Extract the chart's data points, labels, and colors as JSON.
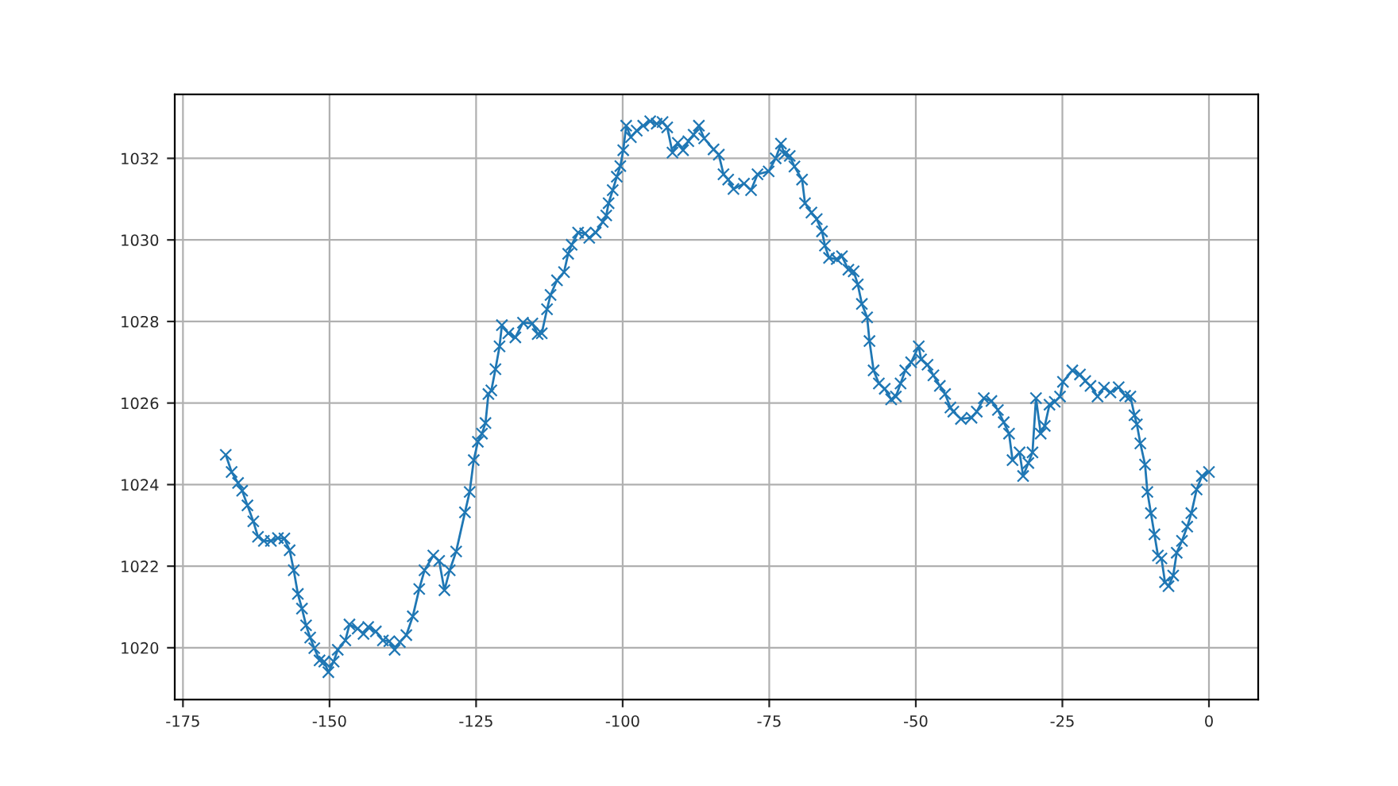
{
  "chart_data": {
    "type": "line",
    "marker": "cross",
    "line_style": "solid",
    "grid": true,
    "legend": false,
    "xlim": [
      -176.4,
      8.4
    ],
    "ylim": [
      1018.73,
      1033.57
    ],
    "xticks": [
      -175,
      -150,
      -125,
      -100,
      -75,
      -50,
      -25,
      0
    ],
    "yticks": [
      1020,
      1022,
      1024,
      1026,
      1028,
      1030,
      1032
    ],
    "series": [
      {
        "color": "#1f77b4",
        "x": [
          -167.7,
          -166.7,
          -165.6,
          -164.9,
          -164.0,
          -163.0,
          -162.2,
          -161.2,
          -160.0,
          -158.8,
          -157.7,
          -156.8,
          -156.1,
          -155.4,
          -154.7,
          -154.0,
          -153.3,
          -152.6,
          -151.7,
          -150.9,
          -150.2,
          -149.3,
          -148.6,
          -147.3,
          -146.6,
          -145.2,
          -144.2,
          -143.4,
          -142.1,
          -140.9,
          -139.8,
          -138.9,
          -138.0,
          -136.9,
          -135.8,
          -134.7,
          -133.8,
          -132.3,
          -131.3,
          -130.4,
          -129.5,
          -128.4,
          -126.9,
          -126.1,
          -125.4,
          -124.7,
          -124.0,
          -123.4,
          -122.9,
          -122.4,
          -121.7,
          -121.0,
          -120.6,
          -119.5,
          -118.3,
          -117.0,
          -115.4,
          -114.5,
          -113.8,
          -112.9,
          -112.3,
          -111.2,
          -110.0,
          -109.3,
          -108.7,
          -107.6,
          -106.4,
          -105.7,
          -104.6,
          -103.4,
          -102.8,
          -102.4,
          -101.7,
          -101.0,
          -100.4,
          -99.9,
          -99.4,
          -98.6,
          -97.6,
          -96.5,
          -95.3,
          -94.2,
          -93.2,
          -92.4,
          -91.5,
          -90.6,
          -89.7,
          -88.8,
          -87.9,
          -87.0,
          -86.1,
          -84.5,
          -83.6,
          -82.8,
          -82.0,
          -81.1,
          -79.3,
          -78.1,
          -77.0,
          -75.1,
          -73.9,
          -73.0,
          -72.4,
          -71.5,
          -70.7,
          -69.4,
          -68.9,
          -67.8,
          -66.9,
          -66.0,
          -65.5,
          -64.8,
          -63.5,
          -62.6,
          -61.5,
          -60.6,
          -59.9,
          -59.2,
          -58.3,
          -57.9,
          -57.2,
          -56.3,
          -55.3,
          -54.2,
          -53.4,
          -52.6,
          -51.8,
          -50.8,
          -49.5,
          -49.1,
          -48.0,
          -47.0,
          -45.9,
          -45.0,
          -44.1,
          -43.6,
          -42.3,
          -40.5,
          -39.6,
          -38.4,
          -37.1,
          -36.0,
          -35.0,
          -34.1,
          -33.5,
          -32.3,
          -31.7,
          -30.8,
          -30.1,
          -29.5,
          -28.7,
          -28.0,
          -27.2,
          -26.3,
          -25.4,
          -24.9,
          -23.3,
          -22.0,
          -21.1,
          -20.2,
          -19.0,
          -17.9,
          -16.8,
          -15.4,
          -14.3,
          -13.4,
          -12.7,
          -12.3,
          -11.7,
          -10.9,
          -10.5,
          -9.9,
          -9.3,
          -8.7,
          -8.1,
          -7.5,
          -6.9,
          -6.1,
          -5.5,
          -4.6,
          -3.7,
          -3.0,
          -2.1,
          -1.2,
          0
        ],
        "values": [
          1024.73,
          1024.31,
          1024.04,
          1023.85,
          1023.49,
          1023.1,
          1022.72,
          1022.62,
          1022.62,
          1022.69,
          1022.68,
          1022.39,
          1021.9,
          1021.32,
          1020.96,
          1020.55,
          1020.25,
          1019.99,
          1019.69,
          1019.66,
          1019.4,
          1019.66,
          1019.95,
          1020.18,
          1020.57,
          1020.47,
          1020.34,
          1020.51,
          1020.4,
          1020.18,
          1020.16,
          1019.95,
          1020.14,
          1020.31,
          1020.77,
          1021.44,
          1021.9,
          1022.26,
          1022.13,
          1021.41,
          1021.9,
          1022.36,
          1023.32,
          1023.82,
          1024.6,
          1025.05,
          1025.25,
          1025.51,
          1026.22,
          1026.31,
          1026.83,
          1027.39,
          1027.91,
          1027.71,
          1027.61,
          1027.97,
          1027.95,
          1027.69,
          1027.71,
          1028.3,
          1028.65,
          1029.01,
          1029.21,
          1029.66,
          1029.88,
          1030.18,
          1030.16,
          1030.05,
          1030.18,
          1030.44,
          1030.6,
          1030.9,
          1031.22,
          1031.55,
          1031.81,
          1032.2,
          1032.8,
          1032.52,
          1032.68,
          1032.8,
          1032.91,
          1032.85,
          1032.89,
          1032.76,
          1032.14,
          1032.38,
          1032.2,
          1032.42,
          1032.58,
          1032.8,
          1032.49,
          1032.22,
          1032.09,
          1031.61,
          1031.48,
          1031.25,
          1031.38,
          1031.22,
          1031.61,
          1031.68,
          1032.0,
          1032.36,
          1032.1,
          1032.06,
          1031.8,
          1031.48,
          1030.9,
          1030.67,
          1030.51,
          1030.21,
          1029.86,
          1029.56,
          1029.53,
          1029.6,
          1029.27,
          1029.23,
          1028.91,
          1028.43,
          1028.1,
          1027.52,
          1026.8,
          1026.48,
          1026.35,
          1026.09,
          1026.16,
          1026.48,
          1026.8,
          1027.0,
          1027.39,
          1027.07,
          1026.94,
          1026.68,
          1026.42,
          1026.22,
          1025.89,
          1025.79,
          1025.61,
          1025.64,
          1025.79,
          1026.12,
          1026.05,
          1025.83,
          1025.53,
          1025.25,
          1024.6,
          1024.79,
          1024.21,
          1024.53,
          1024.79,
          1026.12,
          1025.25,
          1025.44,
          1025.96,
          1026.03,
          1026.16,
          1026.52,
          1026.8,
          1026.7,
          1026.54,
          1026.42,
          1026.16,
          1026.38,
          1026.26,
          1026.39,
          1026.18,
          1026.16,
          1025.7,
          1025.48,
          1025.01,
          1024.49,
          1023.82,
          1023.3,
          1022.78,
          1022.26,
          1022.19,
          1021.61,
          1021.51,
          1021.77,
          1022.33,
          1022.62,
          1022.97,
          1023.3,
          1023.88,
          1024.21,
          1024.31
        ]
      }
    ]
  }
}
